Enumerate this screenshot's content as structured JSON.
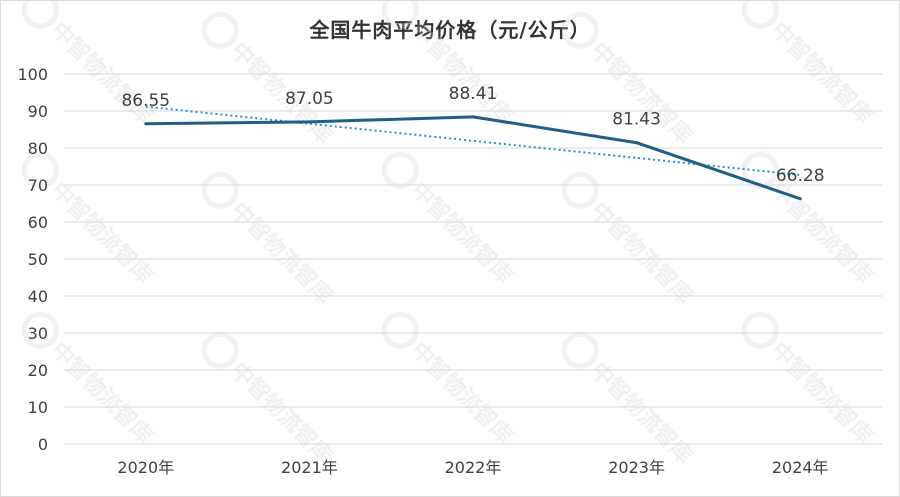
{
  "chart_data": {
    "type": "line",
    "title": "全国牛肉平均价格（元/公斤）",
    "categories": [
      "2020年",
      "2021年",
      "2022年",
      "2023年",
      "2024年"
    ],
    "series": [
      {
        "values": [
          86.55,
          87.05,
          88.41,
          81.43,
          66.28
        ]
      }
    ],
    "trendline": {
      "type": "linear",
      "style": "dotted"
    },
    "ylim": [
      0,
      100
    ],
    "yticks": [
      0,
      10,
      20,
      30,
      40,
      50,
      60,
      70,
      80,
      90,
      100
    ],
    "grid": true,
    "legend": "none",
    "xlabel": "",
    "ylabel": ""
  },
  "watermark": "中智物流智库",
  "colors": {
    "line": "#1f5f86",
    "trend": "#2e8fc9",
    "grid": "#d9d9d9",
    "text": "#404040"
  }
}
